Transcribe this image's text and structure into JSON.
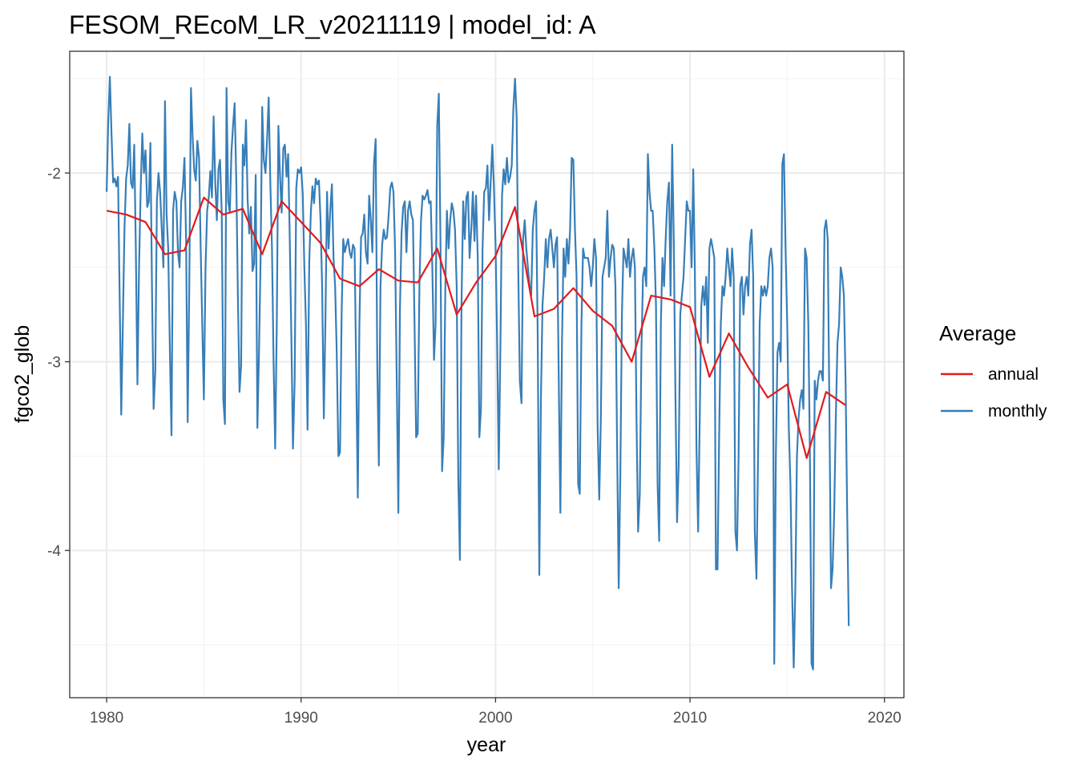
{
  "chart_data": {
    "type": "line",
    "title": "FESOM_REcoM_LR_v20211119 | model_id: A",
    "xlabel": "year",
    "ylabel": "fgco2_glob",
    "xlim": [
      1978.1,
      2021.0
    ],
    "ylim": [
      -4.78,
      -1.355
    ],
    "x_ticks": [
      1980,
      1990,
      2000,
      2010,
      2020
    ],
    "y_ticks": [
      -4,
      -3,
      -2
    ],
    "grid": true,
    "legend": {
      "title": "Average",
      "position": "right",
      "entries": [
        "annual",
        "monthly"
      ]
    },
    "series": [
      {
        "name": "annual",
        "color": "#e41a1c",
        "x": [
          1980,
          1981,
          1982,
          1983,
          1984,
          1985,
          1986,
          1987,
          1988,
          1989,
          1990,
          1991,
          1992,
          1993,
          1994,
          1995,
          1996,
          1997,
          1998,
          1999,
          2000,
          2001,
          2002,
          2003,
          2004,
          2005,
          2006,
          2007,
          2008,
          2009,
          2010,
          2011,
          2012,
          2013,
          2014,
          2015,
          2016,
          2017,
          2018
        ],
        "y": [
          -2.2,
          -2.22,
          -2.26,
          -2.43,
          -2.41,
          -2.13,
          -2.22,
          -2.19,
          -2.43,
          -2.15,
          -2.26,
          -2.37,
          -2.56,
          -2.6,
          -2.51,
          -2.57,
          -2.58,
          -2.4,
          -2.75,
          -2.58,
          -2.44,
          -2.18,
          -2.76,
          -2.72,
          -2.61,
          -2.73,
          -2.81,
          -3.0,
          -2.65,
          -2.67,
          -2.71,
          -3.08,
          -2.85,
          -3.03,
          -3.19,
          -3.12,
          -3.51,
          -3.16,
          -3.23
        ]
      },
      {
        "name": "monthly",
        "color": "#377eb8",
        "x_start": 1980.0,
        "x_step": 0.08333,
        "y": [
          -2.1,
          -1.72,
          -1.49,
          -1.8,
          -2.05,
          -2.03,
          -2.07,
          -2.02,
          -2.65,
          -3.28,
          -2.8,
          -2.3,
          -2.03,
          -1.96,
          -1.74,
          -2.05,
          -2.08,
          -1.85,
          -2.4,
          -3.12,
          -2.5,
          -2.08,
          -1.79,
          -2.0,
          -1.88,
          -2.18,
          -2.15,
          -1.84,
          -2.62,
          -3.25,
          -3.05,
          -2.15,
          -2.0,
          -2.1,
          -2.3,
          -2.5,
          -1.62,
          -2.22,
          -2.4,
          -2.94,
          -3.39,
          -2.2,
          -2.1,
          -2.15,
          -2.42,
          -2.5,
          -2.15,
          -2.08,
          -1.92,
          -2.35,
          -3.32,
          -2.6,
          -1.55,
          -1.8,
          -1.98,
          -2.04,
          -1.83,
          -1.92,
          -2.39,
          -2.8,
          -3.2,
          -2.5,
          -2.2,
          -2.13,
          -1.99,
          -2.13,
          -1.7,
          -2.05,
          -2.25,
          -1.98,
          -1.93,
          -2.21,
          -3.2,
          -3.33,
          -1.55,
          -2.15,
          -2.21,
          -1.89,
          -1.75,
          -1.63,
          -2.05,
          -2.66,
          -3.16,
          -3.02,
          -1.85,
          -1.96,
          -1.72,
          -2.14,
          -2.32,
          -2.18,
          -2.52,
          -2.48,
          -2.01,
          -3.35,
          -2.95,
          -2.45,
          -1.65,
          -1.93,
          -2.0,
          -1.82,
          -1.6,
          -2.04,
          -2.4,
          -3.0,
          -3.46,
          -2.8,
          -1.75,
          -2.02,
          -2.21,
          -1.87,
          -1.85,
          -2.02,
          -1.9,
          -2.35,
          -2.87,
          -3.46,
          -3.1,
          -2.08,
          -1.98,
          -2.0,
          -1.97,
          -2.11,
          -2.5,
          -2.8,
          -3.36,
          -2.47,
          -2.21,
          -2.07,
          -2.16,
          -2.03,
          -2.06,
          -2.04,
          -2.25,
          -2.6,
          -3.3,
          -2.78,
          -2.1,
          -2.4,
          -2.2,
          -2.06,
          -2.45,
          -2.6,
          -2.95,
          -3.5,
          -3.48,
          -2.75,
          -2.35,
          -2.42,
          -2.38,
          -2.35,
          -2.42,
          -2.45,
          -2.38,
          -2.4,
          -3.05,
          -3.72,
          -2.8,
          -2.34,
          -2.32,
          -2.22,
          -2.42,
          -2.48,
          -2.12,
          -2.25,
          -2.42,
          -1.95,
          -1.82,
          -3.02,
          -3.55,
          -2.6,
          -2.38,
          -2.3,
          -2.35,
          -2.34,
          -2.23,
          -2.08,
          -2.05,
          -2.1,
          -2.4,
          -3.1,
          -3.8,
          -2.72,
          -2.32,
          -2.18,
          -2.15,
          -2.42,
          -2.2,
          -2.15,
          -2.22,
          -2.25,
          -2.8,
          -3.4,
          -3.38,
          -2.6,
          -2.25,
          -2.12,
          -2.14,
          -2.12,
          -2.09,
          -2.16,
          -2.15,
          -2.5,
          -2.99,
          -2.8,
          -1.75,
          -1.58,
          -2.38,
          -3.58,
          -3.4,
          -2.62,
          -2.2,
          -2.4,
          -2.25,
          -2.16,
          -2.2,
          -2.3,
          -2.6,
          -3.62,
          -4.05,
          -2.7,
          -2.15,
          -2.35,
          -2.13,
          -2.1,
          -2.45,
          -2.3,
          -2.1,
          -2.36,
          -2.12,
          -2.45,
          -3.4,
          -3.25,
          -2.4,
          -2.1,
          -2.08,
          -1.96,
          -2.25,
          -2.05,
          -1.85,
          -2.08,
          -2.38,
          -2.9,
          -3.57,
          -2.9,
          -2.12,
          -1.98,
          -2.06,
          -1.92,
          -2.05,
          -2.02,
          -1.96,
          -1.66,
          -1.5,
          -1.7,
          -2.5,
          -3.1,
          -3.22,
          -2.35,
          -2.25,
          -2.4,
          -2.5,
          -2.6,
          -2.65,
          -2.3,
          -2.2,
          -2.15,
          -2.85,
          -4.13,
          -3.2,
          -2.7,
          -2.55,
          -2.35,
          -2.5,
          -2.35,
          -2.3,
          -2.4,
          -2.5,
          -2.38,
          -2.34,
          -3.1,
          -3.8,
          -2.9,
          -2.4,
          -2.55,
          -2.35,
          -2.48,
          -2.3,
          -1.92,
          -1.93,
          -2.3,
          -2.55,
          -3.65,
          -3.7,
          -2.8,
          -2.4,
          -2.45,
          -2.45,
          -2.45,
          -2.5,
          -2.6,
          -2.5,
          -2.35,
          -2.45,
          -3.35,
          -3.73,
          -3.3,
          -2.55,
          -2.5,
          -2.45,
          -2.2,
          -2.55,
          -2.45,
          -2.38,
          -2.4,
          -2.6,
          -3.45,
          -4.2,
          -3.6,
          -2.75,
          -2.4,
          -2.45,
          -2.5,
          -2.35,
          -2.55,
          -2.45,
          -2.4,
          -2.5,
          -3.3,
          -3.9,
          -3.7,
          -2.95,
          -2.55,
          -2.5,
          -2.6,
          -1.9,
          -2.1,
          -2.2,
          -2.2,
          -2.4,
          -2.7,
          -3.65,
          -3.95,
          -2.8,
          -2.45,
          -2.6,
          -2.35,
          -2.15,
          -2.05,
          -2.65,
          -1.85,
          -2.35,
          -3.15,
          -3.85,
          -3.55,
          -2.75,
          -2.65,
          -2.55,
          -2.35,
          -2.15,
          -2.2,
          -2.2,
          -2.5,
          -1.98,
          -2.5,
          -3.45,
          -3.9,
          -3.3,
          -2.7,
          -2.6,
          -2.7,
          -2.55,
          -2.9,
          -2.4,
          -2.35,
          -2.4,
          -2.45,
          -4.1,
          -4.1,
          -3.4,
          -2.8,
          -2.6,
          -2.65,
          -2.55,
          -2.4,
          -2.5,
          -2.6,
          -2.4,
          -2.55,
          -3.9,
          -4.0,
          -3.5,
          -2.6,
          -2.55,
          -2.75,
          -2.6,
          -2.55,
          -2.65,
          -2.38,
          -2.3,
          -2.55,
          -3.9,
          -4.15,
          -3.5,
          -2.8,
          -2.6,
          -2.65,
          -2.6,
          -2.65,
          -2.6,
          -2.45,
          -2.4,
          -2.5,
          -4.6,
          -3.5,
          -2.95,
          -2.9,
          -3.0,
          -1.95,
          -1.9,
          -2.4,
          -2.8,
          -3.35,
          -3.65,
          -4.2,
          -4.62,
          -4.2,
          -3.5,
          -3.3,
          -3.2,
          -3.15,
          -3.25,
          -2.4,
          -2.45,
          -2.8,
          -3.5,
          -4.6,
          -4.63,
          -3.1,
          -3.2,
          -3.1,
          -3.05,
          -3.05,
          -3.1,
          -2.3,
          -2.25,
          -2.35,
          -3.2,
          -4.2,
          -4.1,
          -3.8,
          -3.3,
          -2.9,
          -2.8,
          -2.5,
          -2.55,
          -2.65,
          -3.1,
          -3.8,
          -4.4
        ]
      }
    ]
  }
}
